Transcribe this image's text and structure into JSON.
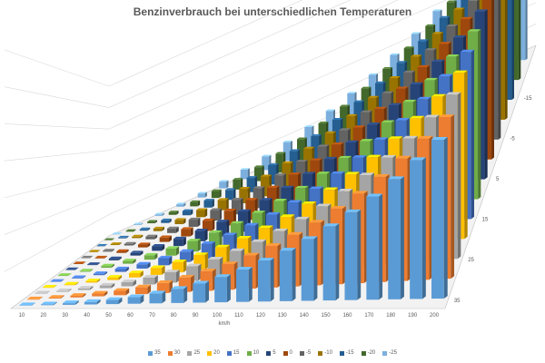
{
  "chart_data": {
    "type": "bar",
    "variant": "3d-clustered-column",
    "title": "Benzinverbrauch bei unterschiedlichen Temperaturen",
    "xlabel": "km/h",
    "ylabel": "",
    "categories": [
      "10",
      "20",
      "30",
      "40",
      "50",
      "60",
      "70",
      "80",
      "90",
      "100",
      "110",
      "120",
      "130",
      "140",
      "150",
      "160",
      "170",
      "180",
      "190",
      "200"
    ],
    "depth_labels": [
      "35",
      "25",
      "15",
      "5",
      "-5",
      "-15"
    ],
    "grid": true,
    "legend_position": "bottom",
    "series": [
      {
        "name": "35",
        "color": "#5b9bd5",
        "values": [
          0.1,
          0.2,
          0.4,
          0.6,
          1,
          1.6,
          2.4,
          3.4,
          4.6,
          6.1,
          7.8,
          9.9,
          12.2,
          14.9,
          17.9,
          21.2,
          24.9,
          29,
          33.5,
          38.3
        ]
      },
      {
        "name": "30",
        "color": "#ed7d31",
        "values": [
          0.1,
          0.2,
          0.4,
          0.7,
          1.1,
          1.7,
          2.5,
          3.6,
          4.9,
          6.4,
          8.3,
          10.4,
          12.9,
          15.7,
          18.9,
          22.4,
          26.3,
          30.6,
          35.3,
          40.4
        ]
      },
      {
        "name": "25",
        "color": "#a5a5a5",
        "values": [
          0.1,
          0.2,
          0.4,
          0.7,
          1.1,
          1.8,
          2.7,
          3.8,
          5.1,
          6.8,
          8.7,
          11,
          13.6,
          16.5,
          19.9,
          23.6,
          27.7,
          32.2,
          37.2,
          42.6
        ]
      },
      {
        "name": "20",
        "color": "#ffc000",
        "values": [
          0.1,
          0.2,
          0.4,
          0.7,
          1.2,
          1.9,
          2.8,
          4,
          5.4,
          7.1,
          9.2,
          11.5,
          14.3,
          17.4,
          20.9,
          24.8,
          29.1,
          33.9,
          39.1,
          44.8
        ]
      },
      {
        "name": "15",
        "color": "#4472c4",
        "values": [
          0.1,
          0.2,
          0.4,
          0.8,
          1.2,
          2,
          2.9,
          4.2,
          5.7,
          7.5,
          9.6,
          12.1,
          15,
          18.3,
          21.9,
          26,
          30.5,
          35.5,
          41,
          46.9
        ]
      },
      {
        "name": "10",
        "color": "#70ad47",
        "values": [
          0.1,
          0.2,
          0.5,
          0.8,
          1.3,
          2.1,
          3.1,
          4.4,
          5.9,
          7.8,
          10.1,
          12.7,
          15.7,
          19.1,
          22.9,
          27.2,
          32,
          37.2,
          42.9,
          49.1
        ]
      },
      {
        "name": "5",
        "color": "#264478",
        "values": [
          0.1,
          0.2,
          0.5,
          0.8,
          1.4,
          2.2,
          3.2,
          4.5,
          6.2,
          8.2,
          10.5,
          13.3,
          16.4,
          20,
          24,
          28.5,
          33.4,
          38.9,
          44.8,
          51.3
        ]
      },
      {
        "name": "0",
        "color": "#9e480e",
        "values": [
          0.1,
          0.2,
          0.5,
          0.9,
          1.4,
          2.3,
          3.3,
          4.7,
          6.4,
          8.5,
          11,
          13.8,
          17.1,
          20.8,
          25,
          29.7,
          34.8,
          40.5,
          46.7,
          53.5
        ]
      },
      {
        "name": "-5",
        "color": "#636363",
        "values": [
          0.1,
          0.3,
          0.5,
          0.9,
          1.5,
          2.4,
          3.5,
          4.9,
          6.7,
          8.9,
          11.4,
          14.4,
          17.8,
          21.7,
          26,
          30.9,
          36.3,
          42.2,
          48.6,
          55.7
        ]
      },
      {
        "name": "-10",
        "color": "#997300",
        "values": [
          0.1,
          0.3,
          0.5,
          0.9,
          1.5,
          2.5,
          3.6,
          5.1,
          7,
          9.2,
          11.9,
          14.9,
          18.5,
          22.5,
          27,
          32.1,
          37.7,
          43.8,
          50.5,
          57.9
        ]
      },
      {
        "name": "-15",
        "color": "#255e91",
        "values": [
          0.1,
          0.3,
          0.5,
          1,
          1.6,
          2.6,
          3.7,
          5.3,
          7.2,
          9.6,
          12.3,
          15.5,
          19.2,
          23.4,
          28.1,
          33.3,
          39.1,
          45.5,
          52.4,
          60.1
        ]
      },
      {
        "name": "-20",
        "color": "#43682b",
        "values": [
          0.1,
          0.3,
          0.6,
          1,
          1.7,
          2.7,
          3.9,
          5.5,
          7.5,
          9.9,
          12.8,
          16.1,
          19.9,
          24.3,
          29.1,
          34.5,
          40.6,
          47.2,
          54.4,
          62.3
        ]
      },
      {
        "name": "-25",
        "color": "#7cafdd",
        "values": [
          0.1,
          0.3,
          0.6,
          1,
          1.7,
          2.8,
          4,
          5.7,
          7.8,
          10.3,
          13.2,
          16.7,
          20.6,
          25.1,
          30.1,
          35.8,
          42,
          48.9,
          56.3,
          64.5
        ]
      }
    ]
  }
}
